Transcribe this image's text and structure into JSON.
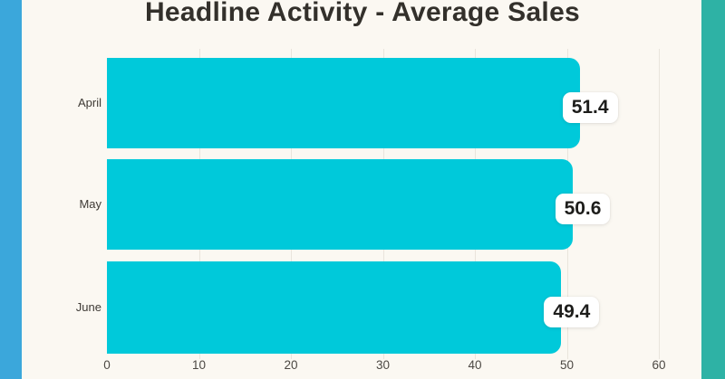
{
  "title": "Headline Activity - Average Sales",
  "colors": {
    "background": "#FBF8F2",
    "left_strip": "#3BA7DB",
    "right_strip": "#2EB2A5",
    "bar": "#00C9DA"
  },
  "chart_data": {
    "type": "bar",
    "orientation": "horizontal",
    "title": "Headline Activity - Average Sales",
    "categories": [
      "April",
      "May",
      "June"
    ],
    "values": [
      51.4,
      50.6,
      49.4
    ],
    "value_labels": [
      "51.4",
      "50.6",
      "49.4"
    ],
    "xlabel": "",
    "ylabel": "",
    "xlim": [
      0,
      60
    ],
    "x_ticks": [
      0,
      10,
      20,
      30,
      40,
      50,
      60
    ],
    "grid": true,
    "legend": false,
    "bar_color": "#00C9DA",
    "value_label_style": "white rounded chip at bar end"
  }
}
